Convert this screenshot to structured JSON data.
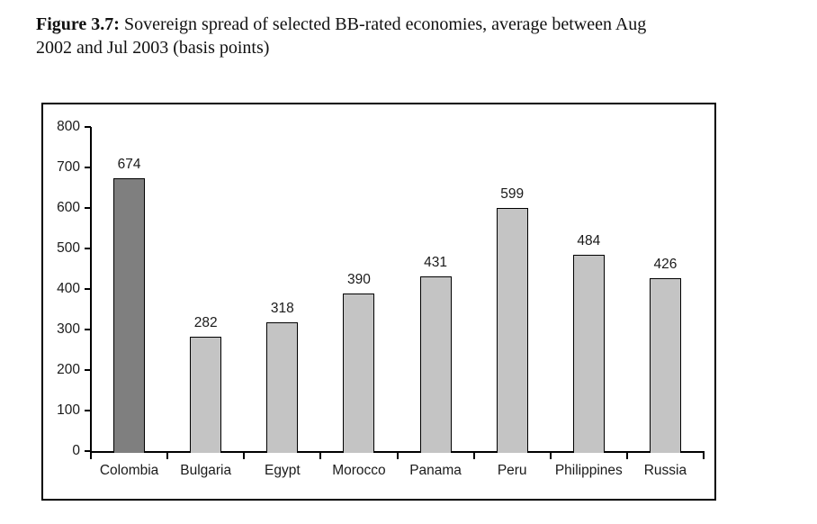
{
  "figure": {
    "label": "Figure 3.7:",
    "caption_line1": "Sovereign spread of selected BB-rated economies, average between Aug",
    "caption_line2": "2002 and Jul 2003 (basis points)"
  },
  "chart_data": {
    "type": "bar",
    "title": "Sovereign spread of selected BB-rated economies, average between Aug 2002 and Jul 2003 (basis points)",
    "categories": [
      "Colombia",
      "Bulgaria",
      "Egypt",
      "Morocco",
      "Panama",
      "Peru",
      "Philippines",
      "Russia"
    ],
    "values": [
      674,
      282,
      318,
      390,
      431,
      599,
      484,
      426
    ],
    "xlabel": "",
    "ylabel": "",
    "ylim": [
      0,
      800
    ],
    "ytick_step": 100,
    "yticks": [
      0,
      100,
      200,
      300,
      400,
      500,
      600,
      700,
      800
    ],
    "grid": false,
    "legend": "none",
    "data_labels": true,
    "highlight_index": 0,
    "colors": {
      "highlight_bar": "#7f7f7f",
      "default_bar": "#c4c4c4",
      "bar_border": "#000000",
      "axis": "#000000",
      "text": "#1a1a1a"
    }
  }
}
